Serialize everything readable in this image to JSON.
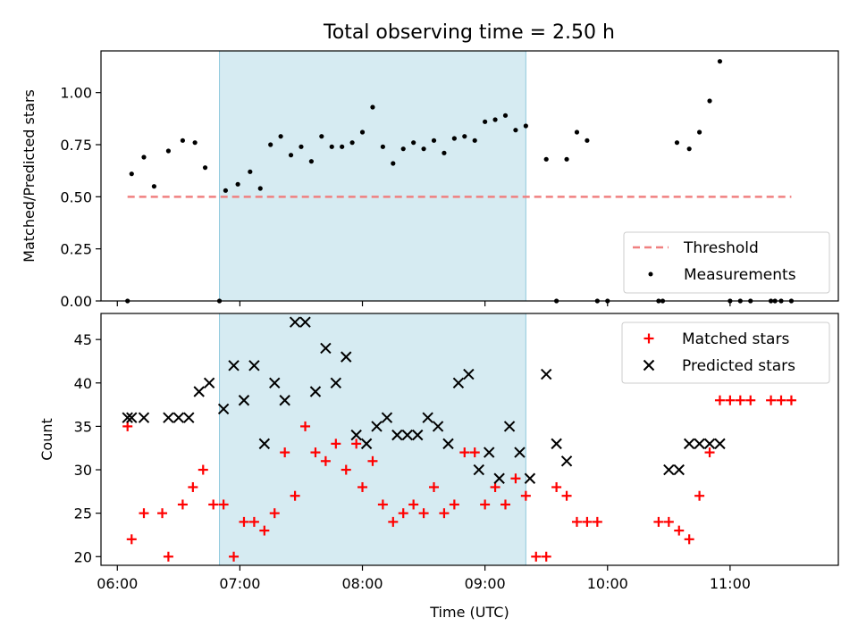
{
  "chart_data": [
    {
      "type": "scatter",
      "title": "Total observing time = 2.50 h",
      "xlabel": "",
      "ylabel": "Matched/Predicted stars",
      "xlim": [
        "05:52",
        "11:53"
      ],
      "ylim": [
        0,
        1.2
      ],
      "yticks": [
        "0.00",
        "0.25",
        "0.50",
        "0.75",
        "1.00"
      ],
      "grid": false,
      "legend_position": "lower-right",
      "observing_window": [
        "06:50",
        "09:20"
      ],
      "threshold": {
        "name": "Threshold",
        "value": 0.5,
        "x_range": [
          "06:05",
          "11:30"
        ],
        "color": "#f08080"
      },
      "series": [
        {
          "name": "Measurements",
          "color": "#000000",
          "x": [
            "06:05",
            "06:07",
            "06:13",
            "06:18",
            "06:25",
            "06:32",
            "06:38",
            "06:43",
            "06:50",
            "06:53",
            "06:59",
            "07:05",
            "07:10",
            "07:15",
            "07:20",
            "07:25",
            "07:30",
            "07:35",
            "07:40",
            "07:45",
            "07:50",
            "07:55",
            "08:00",
            "08:05",
            "08:10",
            "08:15",
            "08:20",
            "08:25",
            "08:30",
            "08:35",
            "08:40",
            "08:45",
            "08:50",
            "08:55",
            "09:00",
            "09:05",
            "09:10",
            "09:15",
            "09:20",
            "09:30",
            "09:35",
            "09:40",
            "09:45",
            "09:50",
            "09:55",
            "10:00",
            "10:25",
            "10:27",
            "10:34",
            "10:40",
            "10:45",
            "10:50",
            "10:55",
            "11:00",
            "11:05",
            "11:10",
            "11:20",
            "11:22",
            "11:25",
            "11:30"
          ],
          "y": [
            0.0,
            0.61,
            0.69,
            0.55,
            0.72,
            0.77,
            0.76,
            0.64,
            0.0,
            0.53,
            0.56,
            0.62,
            0.54,
            0.75,
            0.79,
            0.7,
            0.74,
            0.67,
            0.79,
            0.74,
            0.74,
            0.76,
            0.81,
            0.93,
            0.74,
            0.66,
            0.73,
            0.76,
            0.73,
            0.77,
            0.71,
            0.78,
            0.79,
            0.77,
            0.86,
            0.87,
            0.89,
            0.82,
            0.84,
            0.68,
            0.0,
            0.68,
            0.81,
            0.77,
            0.0,
            0.0,
            0.0,
            0.0,
            0.76,
            0.73,
            0.81,
            0.96,
            1.15,
            0.0,
            0.0,
            0.0,
            0.0,
            0.0,
            0.0,
            0.0
          ]
        }
      ]
    },
    {
      "type": "scatter",
      "title": "",
      "xlabel": "Time (UTC)",
      "ylabel": "Count",
      "xlim": [
        "05:52",
        "11:53"
      ],
      "ylim": [
        19,
        48
      ],
      "xticks": [
        "06:00",
        "07:00",
        "08:00",
        "09:00",
        "10:00",
        "11:00"
      ],
      "yticks": [
        "20",
        "25",
        "30",
        "35",
        "40",
        "45"
      ],
      "grid": false,
      "legend_position": "top-right",
      "observing_window": [
        "06:50",
        "09:20"
      ],
      "series": [
        {
          "name": "Matched stars",
          "marker": "plus",
          "color": "#ff0000",
          "x": [
            "06:05",
            "06:07",
            "06:13",
            "06:22",
            "06:25",
            "06:32",
            "06:37",
            "06:42",
            "06:47",
            "06:52",
            "06:57",
            "07:02",
            "07:07",
            "07:12",
            "07:17",
            "07:22",
            "07:27",
            "07:32",
            "07:37",
            "07:42",
            "07:47",
            "07:52",
            "07:57",
            "08:00",
            "08:05",
            "08:10",
            "08:15",
            "08:20",
            "08:25",
            "08:30",
            "08:35",
            "08:40",
            "08:45",
            "08:50",
            "08:55",
            "09:00",
            "09:05",
            "09:10",
            "09:15",
            "09:20",
            "09:25",
            "09:30",
            "09:35",
            "09:40",
            "09:45",
            "09:50",
            "09:55",
            "10:25",
            "10:30",
            "10:35",
            "10:40",
            "10:45",
            "10:50",
            "10:55",
            "11:00",
            "11:05",
            "11:10",
            "11:20",
            "11:25",
            "11:30"
          ],
          "y": [
            35,
            22,
            25,
            25,
            20,
            26,
            28,
            30,
            26,
            26,
            20,
            24,
            24,
            23,
            25,
            32,
            27,
            35,
            32,
            31,
            33,
            30,
            33,
            28,
            31,
            26,
            24,
            25,
            26,
            25,
            28,
            25,
            26,
            32,
            32,
            26,
            28,
            26,
            29,
            27,
            20,
            20,
            28,
            27,
            24,
            24,
            24,
            24,
            24,
            23,
            22,
            27,
            32,
            38,
            38,
            38,
            38,
            38,
            38,
            38
          ]
        },
        {
          "name": "Predicted stars",
          "marker": "x",
          "color": "#000000",
          "x": [
            "06:05",
            "06:07",
            "06:13",
            "06:25",
            "06:30",
            "06:35",
            "06:40",
            "06:45",
            "06:52",
            "06:57",
            "07:02",
            "07:07",
            "07:12",
            "07:17",
            "07:22",
            "07:27",
            "07:32",
            "07:37",
            "07:42",
            "07:47",
            "07:52",
            "07:57",
            "08:02",
            "08:07",
            "08:12",
            "08:17",
            "08:22",
            "08:27",
            "08:32",
            "08:37",
            "08:42",
            "08:47",
            "08:52",
            "08:57",
            "09:02",
            "09:07",
            "09:12",
            "09:17",
            "09:22",
            "09:30",
            "09:35",
            "09:40",
            "10:30",
            "10:35",
            "10:40",
            "10:45",
            "10:50",
            "10:55"
          ],
          "y": [
            36,
            36,
            36,
            36,
            36,
            36,
            39,
            40,
            37,
            42,
            38,
            42,
            33,
            40,
            38,
            47,
            47,
            39,
            44,
            40,
            43,
            34,
            33,
            35,
            36,
            34,
            34,
            34,
            36,
            35,
            33,
            40,
            41,
            30,
            32,
            29,
            35,
            32,
            29,
            41,
            33,
            31,
            30,
            30,
            33,
            33,
            33,
            33
          ]
        }
      ]
    }
  ]
}
